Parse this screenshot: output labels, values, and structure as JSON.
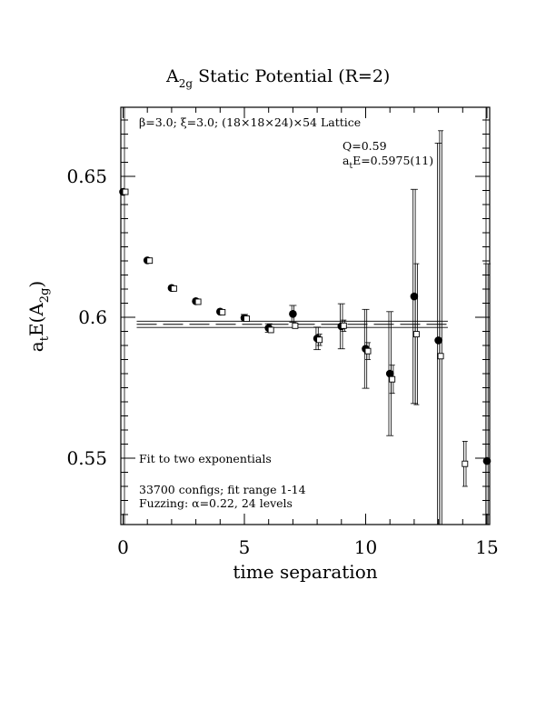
{
  "chart_data": {
    "type": "scatter",
    "title": {
      "main": "A",
      "sub": "2g",
      "rest": " Static Potential (R=2)"
    },
    "xlabel": "time separation",
    "ylabel": {
      "pre": "a",
      "sub1": "t",
      "mid": "E(A",
      "sub2": "2g",
      "post": ")"
    },
    "xlim": [
      0,
      15
    ],
    "ylim": [
      0.527,
      0.675
    ],
    "x_ticks": [
      0,
      5,
      10,
      15
    ],
    "x_tick_labels": [
      "0",
      "5",
      "10",
      "15"
    ],
    "y_ticks": [
      0.55,
      0.6,
      0.65
    ],
    "y_tick_labels": [
      "0.55",
      "0.6",
      "0.65"
    ],
    "grid": false,
    "annotations": {
      "lattice": "β=3.0; ξ=3.0; (18×18×24)×54 Lattice",
      "q": "Q=0.59",
      "fit_pre": "a",
      "fit_sub": "t",
      "fit_post": "E=0.5975(11)",
      "method": "Fit to two exponentials",
      "configs": "33700 configs; fit range 1-14",
      "fuzzing": "Fuzzing: α=0.22, 24 levels"
    },
    "fit": {
      "value": 0.5975,
      "error": 0.0011,
      "x_range": [
        0,
        13.2
      ]
    },
    "series": [
      {
        "marker": "filled-circle",
        "points": [
          {
            "x": 0,
            "y": 0.6445,
            "err": 0.0003
          },
          {
            "x": 1,
            "y": 0.6202,
            "err": 0.0004
          },
          {
            "x": 2,
            "y": 0.6104,
            "err": 0.0006
          },
          {
            "x": 3,
            "y": 0.6057,
            "err": 0.0008
          },
          {
            "x": 4,
            "y": 0.602,
            "err": 0.001
          },
          {
            "x": 5,
            "y": 0.5998,
            "err": 0.0012
          },
          {
            "x": 6,
            "y": 0.5962,
            "err": 0.0015
          },
          {
            "x": 7,
            "y": 0.6012,
            "err": 0.003
          },
          {
            "x": 8,
            "y": 0.5925,
            "err": 0.004
          },
          {
            "x": 9,
            "y": 0.5968,
            "err": 0.008
          },
          {
            "x": 10,
            "y": 0.5888,
            "err": 0.014
          },
          {
            "x": 11,
            "y": 0.58,
            "err": 0.022
          },
          {
            "x": 12,
            "y": 0.6074,
            "err": 0.038
          },
          {
            "x": 13,
            "y": 0.5918,
            "err": 0.07
          },
          {
            "x": 15,
            "y": 0.549,
            "err": 0.07
          }
        ]
      },
      {
        "marker": "open-square",
        "points": [
          {
            "x": 0,
            "y": 0.6445,
            "err": 0.0003
          },
          {
            "x": 1,
            "y": 0.6201,
            "err": 0.0004
          },
          {
            "x": 2,
            "y": 0.6102,
            "err": 0.0006
          },
          {
            "x": 3,
            "y": 0.6055,
            "err": 0.0006
          },
          {
            "x": 4,
            "y": 0.6018,
            "err": 0.0006
          },
          {
            "x": 5,
            "y": 0.5995,
            "err": 0.0005
          },
          {
            "x": 6,
            "y": 0.5955,
            "err": 0.001
          },
          {
            "x": 7,
            "y": 0.597,
            "err": 0.001
          },
          {
            "x": 8,
            "y": 0.592,
            "err": 0.002
          },
          {
            "x": 9,
            "y": 0.597,
            "err": 0.002
          },
          {
            "x": 10,
            "y": 0.588,
            "err": 0.003
          },
          {
            "x": 11,
            "y": 0.578,
            "err": 0.005
          },
          {
            "x": 12,
            "y": 0.594,
            "err": 0.025
          },
          {
            "x": 13,
            "y": 0.5862,
            "err": 0.08
          },
          {
            "x": 14,
            "y": 0.548,
            "err": 0.008
          }
        ]
      }
    ]
  }
}
